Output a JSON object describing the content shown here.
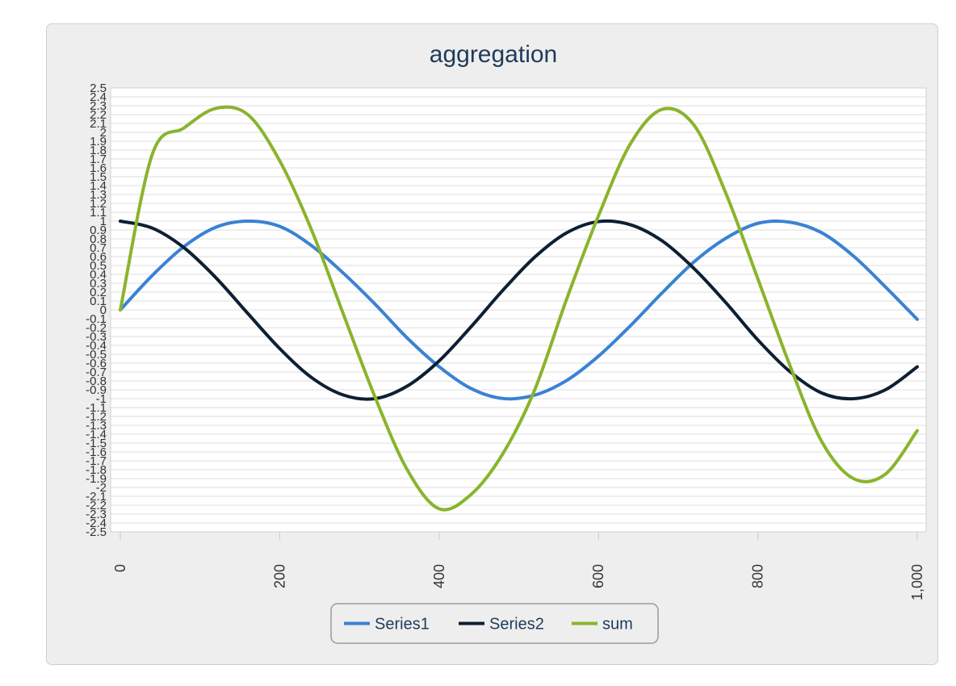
{
  "chart_data": {
    "type": "line",
    "title": "aggregation",
    "xlabel": "",
    "ylabel": "",
    "xlim": [
      0,
      1000
    ],
    "ylim": [
      -2.5,
      2.5
    ],
    "x_ticks": [
      0,
      200,
      400,
      600,
      800,
      1000
    ],
    "x_tick_labels": [
      "0",
      "200",
      "400",
      "600",
      "800",
      "1,000"
    ],
    "y_ticks": [
      2.5,
      2.4,
      2.3,
      2.2,
      2.1,
      2,
      1.9,
      1.8,
      1.7,
      1.6,
      1.5,
      1.4,
      1.3,
      1.2,
      1.1,
      1,
      0.9,
      0.8,
      0.7,
      0.6,
      0.5,
      0.4,
      0.3,
      0.2,
      0.1,
      0,
      -0.1,
      -0.2,
      -0.3,
      -0.4,
      -0.5,
      -0.6,
      -0.7,
      -0.8,
      -0.9,
      -1,
      -1.1,
      -1.2,
      -1.3,
      -1.4,
      -1.5,
      -1.6,
      -1.7,
      -1.8,
      -1.9,
      -2,
      -2.1,
      -2.2,
      -2.3,
      -2.4,
      -2.5
    ],
    "y_tick_labels": [
      "2.5",
      "2.4",
      "2.3",
      "2.2",
      "2.1",
      "2",
      "1.9",
      "1.8",
      "1.7",
      "1.6",
      "1.5",
      "1.4",
      "1.3",
      "1.2",
      "1.1",
      "1",
      "0.9",
      "0.8",
      "0.7",
      "0.6",
      "0.5",
      "0.4",
      "0.3",
      "0.2",
      "0.1",
      "0",
      "-0.1",
      "-0.2",
      "-0.3",
      "-0.4",
      "-0.5",
      "-0.6",
      "-0.7",
      "-0.8",
      "-0.9",
      "-1",
      "-1.1",
      "-1.2",
      "-1.3",
      "-1.4",
      "-1.5",
      "-1.6",
      "-1.7",
      "-1.8",
      "-1.9",
      "-2",
      "-2.1",
      "-2.2",
      "-2.3",
      "-2.4",
      "-2.5"
    ],
    "grid": true,
    "legend_placement": "bottom-center",
    "x": [
      0,
      40,
      80,
      120,
      160,
      200,
      240,
      280,
      320,
      360,
      400,
      440,
      480,
      520,
      560,
      600,
      640,
      680,
      720,
      760,
      800,
      840,
      880,
      920,
      960,
      1000
    ],
    "series": [
      {
        "name": "Series1",
        "color": "#3a82d4",
        "values": [
          0,
          0.387,
          0.714,
          0.932,
          1.0,
          0.941,
          0.724,
          0.413,
          0.062,
          -0.316,
          -0.639,
          -0.885,
          -0.998,
          -0.96,
          -0.795,
          -0.521,
          -0.179,
          0.193,
          0.542,
          0.808,
          0.975,
          0.989,
          0.87,
          0.607,
          0.26,
          -0.106
        ]
      },
      {
        "name": "Series2",
        "color": "#0e1f33",
        "values": [
          1.0,
          0.922,
          0.7,
          0.362,
          -0.04,
          -0.435,
          -0.762,
          -0.959,
          -0.999,
          -0.858,
          -0.575,
          -0.191,
          0.221,
          0.594,
          0.868,
          0.995,
          0.96,
          0.777,
          0.465,
          0.08,
          -0.338,
          -0.693,
          -0.935,
          -1.0,
          -0.9,
          -0.641
        ]
      },
      {
        "name": "sum",
        "color": "#8ab42d",
        "values": [
          0,
          1.75,
          2.05,
          2.27,
          2.2,
          1.68,
          0.9,
          -0.05,
          -0.99,
          -1.8,
          -2.24,
          -2.08,
          -1.62,
          -0.9,
          0.12,
          1.06,
          1.87,
          2.26,
          2.08,
          1.31,
          0.35,
          -0.62,
          -1.48,
          -1.9,
          -1.85,
          -1.36
        ]
      }
    ]
  }
}
